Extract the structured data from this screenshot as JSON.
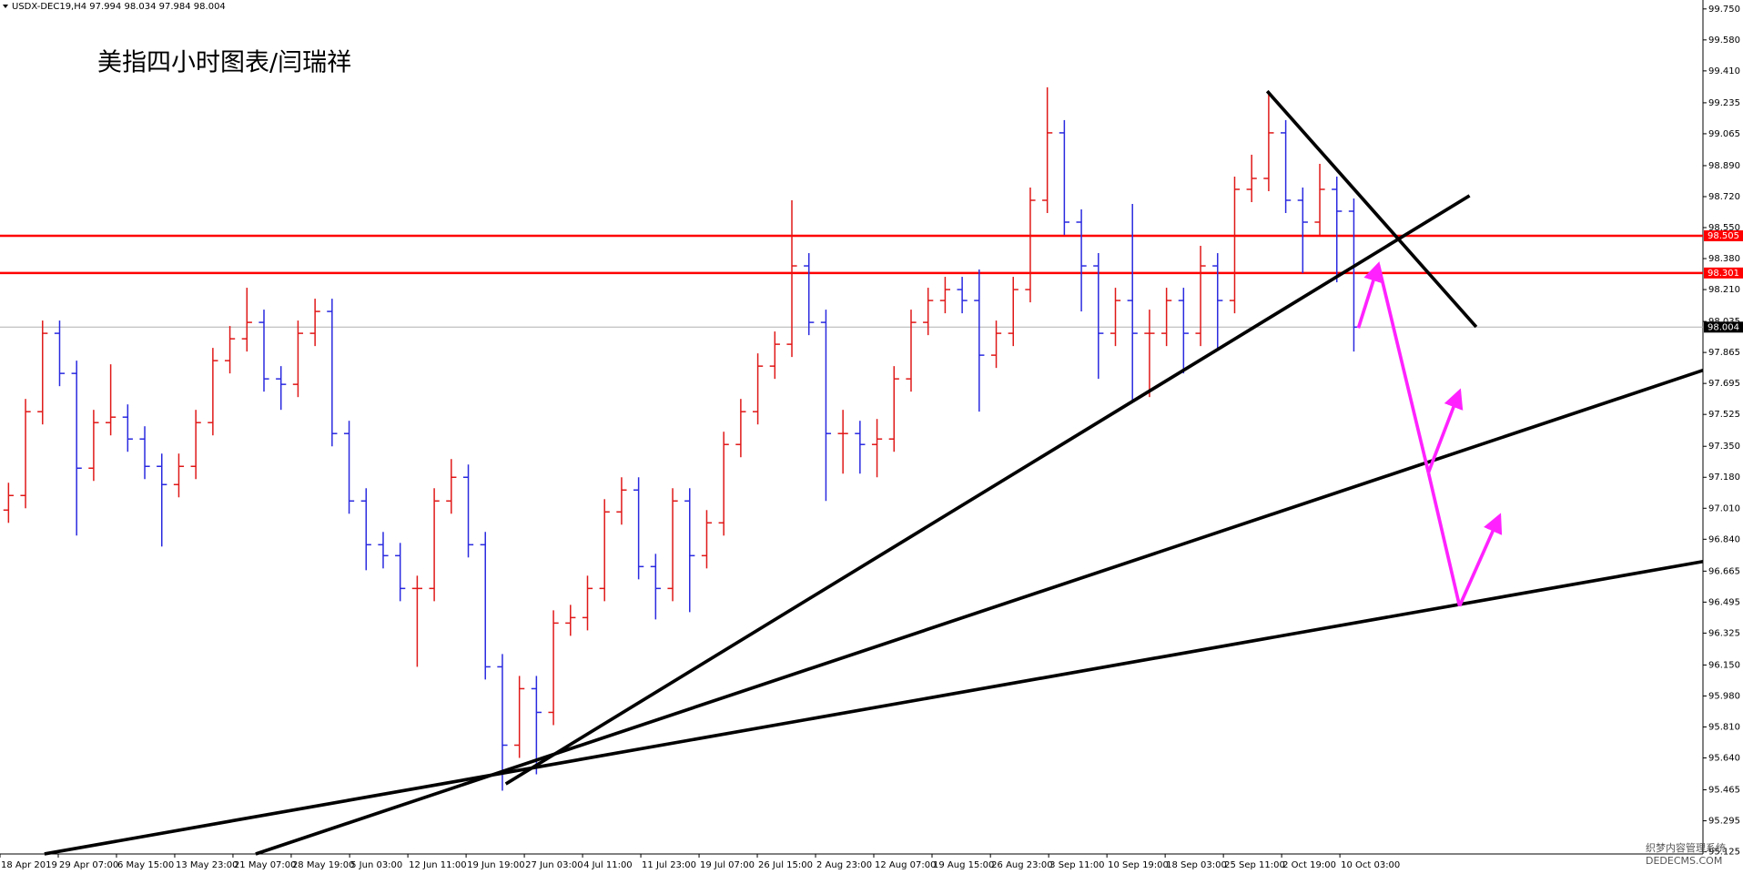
{
  "chart_data": {
    "type": "ohlc",
    "header": "USDX-DEC19,H4  97.994 98.034 97.984 98.004",
    "title": "美指四小时图表/闫瑞祥",
    "up_color": "#e01818",
    "down_color": "#2a2ae0",
    "series": {
      "open": [
        97.0,
        97.08,
        97.54,
        97.97,
        97.75,
        97.23,
        97.48,
        97.51,
        97.39,
        97.24,
        97.14,
        97.24,
        97.48,
        97.82,
        97.94,
        98.03,
        97.72,
        97.69,
        97.97,
        98.09,
        97.42,
        97.05,
        96.81,
        96.75,
        96.57,
        96.57,
        97.05,
        97.18,
        96.81,
        96.14,
        95.71,
        96.02,
        95.89,
        96.38,
        96.41,
        96.57,
        96.99,
        97.11,
        96.69,
        96.57,
        97.05,
        96.75,
        96.93,
        97.36,
        97.54,
        97.79,
        97.91,
        98.34,
        98.03,
        97.42,
        97.42,
        97.36,
        97.39,
        97.72,
        98.03,
        98.15,
        98.21,
        98.15,
        97.85,
        97.97,
        98.21,
        98.7,
        99.07,
        98.58,
        98.34,
        97.97,
        98.15,
        97.97,
        97.97,
        98.15,
        97.97,
        98.34,
        98.15,
        98.76,
        98.82,
        99.07,
        98.7,
        98.58,
        98.76,
        98.64
      ],
      "high": [
        97.15,
        97.61,
        98.04,
        98.04,
        97.82,
        97.55,
        97.8,
        97.58,
        97.46,
        97.31,
        97.31,
        97.55,
        97.89,
        98.01,
        98.22,
        98.1,
        97.79,
        98.04,
        98.16,
        98.16,
        97.49,
        97.12,
        96.88,
        96.82,
        96.64,
        97.12,
        97.28,
        97.25,
        96.88,
        96.21,
        96.09,
        96.09,
        96.45,
        96.48,
        96.64,
        97.06,
        97.18,
        97.18,
        96.76,
        97.12,
        97.12,
        97.0,
        97.43,
        97.61,
        97.86,
        97.98,
        98.7,
        98.41,
        98.1,
        97.55,
        97.49,
        97.5,
        97.79,
        98.1,
        98.22,
        98.28,
        98.28,
        98.32,
        98.04,
        98.28,
        98.77,
        99.32,
        99.14,
        98.65,
        98.41,
        98.22,
        98.68,
        98.1,
        98.22,
        98.22,
        98.45,
        98.41,
        98.83,
        98.95,
        99.28,
        99.14,
        98.77,
        98.9,
        98.83,
        98.71
      ],
      "low": [
        96.93,
        97.01,
        97.47,
        97.68,
        96.86,
        97.16,
        97.41,
        97.32,
        97.17,
        96.8,
        97.07,
        97.17,
        97.41,
        97.75,
        97.87,
        97.65,
        97.55,
        97.62,
        97.9,
        97.35,
        96.98,
        96.67,
        96.68,
        96.5,
        96.14,
        96.5,
        96.98,
        96.74,
        96.07,
        95.46,
        95.64,
        95.55,
        95.82,
        96.31,
        96.34,
        96.5,
        96.92,
        96.62,
        96.4,
        96.5,
        96.44,
        96.68,
        96.86,
        97.29,
        97.47,
        97.72,
        97.84,
        97.96,
        97.05,
        97.2,
        97.2,
        97.18,
        97.32,
        97.65,
        97.96,
        98.08,
        98.08,
        97.54,
        97.78,
        97.9,
        98.14,
        98.63,
        98.51,
        98.09,
        97.72,
        97.9,
        97.6,
        97.62,
        97.9,
        97.75,
        97.9,
        97.88,
        98.08,
        98.69,
        98.75,
        98.63,
        98.3,
        98.51,
        98.25,
        97.87
      ],
      "close": [
        97.08,
        97.54,
        97.97,
        97.75,
        97.23,
        97.48,
        97.51,
        97.39,
        97.24,
        97.14,
        97.24,
        97.48,
        97.82,
        97.94,
        98.03,
        97.72,
        97.69,
        97.97,
        98.09,
        97.42,
        97.05,
        96.81,
        96.75,
        96.57,
        96.57,
        97.05,
        97.18,
        96.81,
        96.14,
        95.71,
        96.02,
        95.89,
        96.38,
        96.41,
        96.57,
        96.99,
        97.11,
        96.69,
        96.57,
        97.05,
        96.75,
        96.93,
        97.36,
        97.54,
        97.79,
        97.91,
        98.34,
        98.03,
        97.42,
        97.42,
        97.36,
        97.39,
        97.72,
        98.03,
        98.15,
        98.21,
        98.15,
        97.85,
        97.97,
        98.21,
        98.7,
        99.07,
        98.58,
        98.34,
        97.97,
        98.15,
        97.97,
        97.97,
        98.15,
        97.97,
        98.34,
        98.15,
        98.76,
        98.82,
        99.07,
        98.7,
        98.58,
        98.76,
        98.64,
        98.004
      ]
    },
    "xlim": [
      0,
      100
    ],
    "xticks": [
      {
        "value": 0,
        "label": "18 Apr 2019"
      },
      {
        "value": 3.42,
        "label": "29 Apr 07:00"
      },
      {
        "value": 6.84,
        "label": "6 May 15:00"
      },
      {
        "value": 10.26,
        "label": "13 May 23:00"
      },
      {
        "value": 13.68,
        "label": "21 May 07:00"
      },
      {
        "value": 17.1,
        "label": "28 May 19:00"
      },
      {
        "value": 20.53,
        "label": "5 Jun 03:00"
      },
      {
        "value": 23.95,
        "label": "12 Jun 11:00"
      },
      {
        "value": 27.37,
        "label": "19 Jun 19:00"
      },
      {
        "value": 30.79,
        "label": "27 Jun 03:00"
      },
      {
        "value": 34.21,
        "label": "4 Jul 11:00"
      },
      {
        "value": 37.63,
        "label": "11 Jul 23:00"
      },
      {
        "value": 41.05,
        "label": "19 Jul 07:00"
      },
      {
        "value": 44.47,
        "label": "26 Jul 15:00"
      },
      {
        "value": 47.89,
        "label": "2 Aug 23:00"
      },
      {
        "value": 51.31,
        "label": "12 Aug 07:00"
      },
      {
        "value": 54.73,
        "label": "19 Aug 15:00"
      },
      {
        "value": 58.16,
        "label": "26 Aug 23:00"
      },
      {
        "value": 61.58,
        "label": "3 Sep 11:00"
      },
      {
        "value": 65,
        "label": "10 Sep 19:00"
      },
      {
        "value": 68.42,
        "label": "18 Sep 03:00"
      },
      {
        "value": 71.84,
        "label": "25 Sep 11:00"
      },
      {
        "value": 75.26,
        "label": "2 Oct 19:00"
      },
      {
        "value": 78.68,
        "label": "10 Oct 03:00"
      }
    ],
    "ylim": [
      95.113,
      99.799
    ],
    "yticks": [
      {
        "value": 99.75,
        "label": "99.750"
      },
      {
        "value": 99.58,
        "label": "99.580"
      },
      {
        "value": 99.41,
        "label": "99.410"
      },
      99.235,
      99.065,
      {
        "value": 98.89,
        "label": "98.890"
      },
      {
        "value": 98.72,
        "label": "98.720"
      },
      {
        "value": 98.55,
        "label": "98.550"
      },
      {
        "value": 98.38,
        "label": "98.380"
      },
      {
        "value": 98.21,
        "label": "98.210"
      },
      98.035,
      97.865,
      97.695,
      97.525,
      {
        "value": 97.35,
        "label": "97.350"
      },
      {
        "value": 97.18,
        "label": "97.180"
      },
      {
        "value": 97.01,
        "label": "97.010"
      },
      {
        "value": 96.84,
        "label": "96.840"
      },
      96.665,
      96.495,
      96.325,
      {
        "value": 96.15,
        "label": "96.150"
      },
      {
        "value": 95.98,
        "label": "95.980"
      },
      {
        "value": 95.81,
        "label": "95.810"
      },
      {
        "value": 95.64,
        "label": "95.640"
      },
      95.465,
      95.295,
      95.125
    ],
    "levels": [
      98.505,
      98.301
    ],
    "level_color": "#ff0000",
    "current_price": 98.004,
    "watermark": [
      "织梦内容管理系统",
      "DEDECMS.COM"
    ]
  }
}
